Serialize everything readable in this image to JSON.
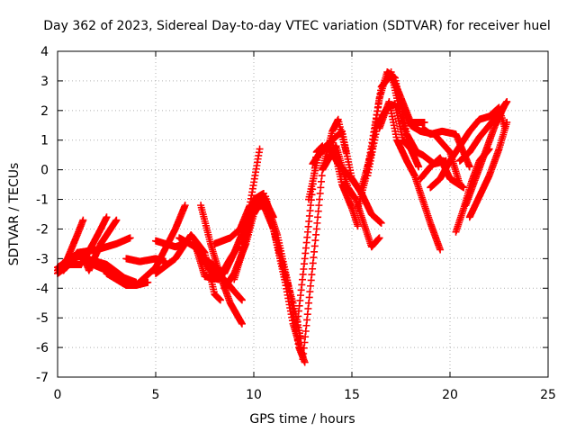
{
  "chart_data": {
    "type": "scatter",
    "title": "Day 362 of 2023, Sidereal Day-to-day VTEC variation (SDTVAR) for receiver huel",
    "xlabel": "GPS time / hours",
    "ylabel": "SDTVAR / TECUs",
    "xlim": [
      0,
      25
    ],
    "ylim": [
      -7,
      4
    ],
    "xticks": [
      "0",
      "5",
      "10",
      "15",
      "20",
      "25"
    ],
    "yticks": [
      "4",
      "3",
      "2",
      "1",
      "0",
      "-1",
      "-2",
      "-3",
      "-4",
      "-5",
      "-6",
      "-7"
    ],
    "grid": true,
    "marker": "+",
    "color": "#ff0000",
    "series": [
      {
        "x": [
          0.0,
          0.5,
          1.0,
          1.3
        ],
        "y": [
          -3.4,
          -3.0,
          -2.2,
          -1.7
        ]
      },
      {
        "x": [
          0.0,
          0.6,
          1.2,
          1.8,
          2.2,
          2.5
        ],
        "y": [
          -3.5,
          -3.2,
          -3.2,
          -2.5,
          -2.0,
          -1.6
        ]
      },
      {
        "x": [
          0.0,
          0.7,
          1.3,
          1.6,
          2.2,
          3.0
        ],
        "y": [
          -3.3,
          -3.0,
          -2.9,
          -3.4,
          -2.5,
          -1.7
        ]
      },
      {
        "x": [
          0.3,
          1.0,
          2.0,
          3.0,
          3.7
        ],
        "y": [
          -3.4,
          -2.8,
          -2.7,
          -2.5,
          -2.3
        ]
      },
      {
        "x": [
          1.5,
          2.5,
          3.5,
          4.0,
          4.6
        ],
        "y": [
          -3.0,
          -3.2,
          -3.7,
          -3.9,
          -3.8
        ]
      },
      {
        "x": [
          1.8,
          2.5,
          3.2,
          4.0
        ],
        "y": [
          -3.2,
          -3.4,
          -3.6,
          -3.8
        ]
      },
      {
        "x": [
          2.5,
          3.5,
          4.0,
          5.0,
          6.0,
          6.5
        ],
        "y": [
          -3.5,
          -3.9,
          -3.9,
          -3.3,
          -2.0,
          -1.2
        ]
      },
      {
        "x": [
          3.5,
          4.2,
          5.0,
          5.5
        ],
        "y": [
          -3.0,
          -3.1,
          -3.0,
          -3.1
        ]
      },
      {
        "x": [
          5.0,
          5.5,
          6.0,
          6.5
        ],
        "y": [
          -2.4,
          -2.5,
          -2.6,
          -2.5
        ]
      },
      {
        "x": [
          5.0,
          6.0,
          6.8,
          7.5,
          8.0,
          8.3
        ],
        "y": [
          -3.5,
          -3.0,
          -2.2,
          -2.8,
          -4.2,
          -4.4
        ]
      },
      {
        "x": [
          6.2,
          7.0,
          7.8,
          8.5,
          9.0,
          9.4
        ],
        "y": [
          -2.3,
          -2.6,
          -3.4,
          -3.7,
          -4.1,
          -4.4
        ]
      },
      {
        "x": [
          7.0,
          7.5,
          8.2,
          8.8,
          9.2
        ],
        "y": [
          -2.5,
          -3.6,
          -3.7,
          -3.0,
          -2.6
        ]
      },
      {
        "x": [
          7.3,
          7.8,
          8.3,
          8.8,
          9.4
        ],
        "y": [
          -1.2,
          -2.5,
          -3.6,
          -4.5,
          -5.2
        ]
      },
      {
        "x": [
          7.5,
          8.5,
          9.0,
          9.5,
          10.0,
          10.5
        ],
        "y": [
          -3.0,
          -3.5,
          -2.8,
          -2.0,
          -1.0,
          -0.8
        ]
      },
      {
        "x": [
          8.0,
          8.8,
          9.3,
          9.8,
          10.3
        ],
        "y": [
          -2.5,
          -2.3,
          -2.0,
          -1.2,
          0.7
        ]
      },
      {
        "x": [
          8.5,
          9.0,
          9.6,
          10.0,
          10.5,
          11.0
        ],
        "y": [
          -4.0,
          -3.5,
          -2.5,
          -1.5,
          -0.9,
          -1.6
        ]
      },
      {
        "x": [
          9.0,
          9.5,
          10.0,
          10.5,
          11.0,
          11.5,
          12.0,
          12.4
        ],
        "y": [
          -3.7,
          -2.6,
          -1.3,
          -1.2,
          -2.0,
          -3.3,
          -4.5,
          -5.7
        ]
      },
      {
        "x": [
          9.4,
          10.0,
          10.6,
          11.2,
          11.8,
          12.3,
          12.6
        ],
        "y": [
          -2.5,
          -1.2,
          -1.0,
          -2.2,
          -4.0,
          -6.0,
          -6.5
        ]
      },
      {
        "x": [
          10.0,
          10.6,
          11.0,
          11.6,
          12.0,
          12.5
        ],
        "y": [
          -1.0,
          -0.9,
          -2.0,
          -3.8,
          -5.2,
          -6.3
        ]
      },
      {
        "x": [
          12.2,
          12.6,
          12.9,
          13.2,
          13.5
        ],
        "y": [
          -5.3,
          -3.0,
          -1.2,
          0.6,
          0.8
        ]
      },
      {
        "x": [
          12.5,
          12.8,
          13.2,
          13.5,
          14.0,
          14.3,
          14.7
        ],
        "y": [
          -6.4,
          -4.5,
          -2.0,
          0.0,
          1.3,
          1.7,
          0.6
        ]
      },
      {
        "x": [
          12.8,
          13.3,
          13.8,
          14.3,
          15.0,
          15.5
        ],
        "y": [
          -1.0,
          0.5,
          0.8,
          0.2,
          -0.3,
          -0.8
        ]
      },
      {
        "x": [
          13.0,
          13.5,
          14.0,
          14.5,
          15.0,
          15.3
        ],
        "y": [
          0.2,
          0.7,
          1.0,
          -0.5,
          -1.3,
          -1.9
        ]
      },
      {
        "x": [
          13.5,
          14.2,
          14.8,
          15.2,
          15.6,
          16.0,
          16.4
        ],
        "y": [
          0.0,
          0.8,
          -0.6,
          -1.0,
          -1.8,
          -2.6,
          -2.3
        ]
      },
      {
        "x": [
          14.0,
          14.5,
          15.0,
          15.5,
          16.0,
          16.5
        ],
        "y": [
          1.0,
          1.3,
          -0.3,
          -0.8,
          -1.5,
          -1.8
        ]
      },
      {
        "x": [
          15.3,
          15.7,
          16.0,
          16.5,
          17.0,
          17.4,
          18.0,
          18.7
        ],
        "y": [
          -1.3,
          -0.3,
          0.8,
          2.8,
          3.2,
          2.6,
          1.6,
          1.6
        ]
      },
      {
        "x": [
          15.5,
          16.0,
          16.4,
          16.8,
          17.2,
          17.8,
          18.3
        ],
        "y": [
          -0.6,
          0.6,
          2.4,
          3.3,
          3.1,
          1.2,
          0.6
        ]
      },
      {
        "x": [
          15.8,
          16.3,
          16.8,
          17.2,
          17.6,
          18.0,
          18.4
        ],
        "y": [
          -0.2,
          1.5,
          2.1,
          2.2,
          1.0,
          0.7,
          0.1
        ]
      },
      {
        "x": [
          16.4,
          16.9,
          17.3,
          17.8,
          18.2,
          18.6,
          19.0,
          19.5
        ],
        "y": [
          1.4,
          2.3,
          1.0,
          0.3,
          -0.2,
          -1.0,
          -1.8,
          -2.7
        ]
      },
      {
        "x": [
          17.0,
          17.5,
          18.0,
          18.6,
          19.2,
          19.8
        ],
        "y": [
          3.3,
          1.8,
          0.7,
          0.5,
          0.2,
          0.3
        ]
      },
      {
        "x": [
          17.5,
          18.0,
          18.5,
          19.2,
          20.0,
          20.5
        ],
        "y": [
          2.3,
          1.5,
          1.3,
          1.2,
          0.6,
          -0.5
        ]
      },
      {
        "x": [
          18.6,
          19.0,
          19.6,
          20.3,
          21.0
        ],
        "y": [
          1.4,
          1.2,
          1.3,
          1.2,
          0.1
        ]
      },
      {
        "x": [
          18.5,
          19.0,
          19.5,
          20.0,
          20.7
        ],
        "y": [
          -0.3,
          0.1,
          0.4,
          -0.3,
          -0.6
        ]
      },
      {
        "x": [
          19.0,
          19.5,
          20.0,
          20.5,
          21.0,
          21.5,
          22.0,
          22.5,
          22.8
        ],
        "y": [
          -0.6,
          -0.3,
          0.3,
          0.8,
          1.3,
          1.7,
          1.8,
          2.1,
          1.4
        ]
      },
      {
        "x": [
          20.3,
          20.7,
          21.1,
          21.5,
          22.0
        ],
        "y": [
          -2.1,
          -1.3,
          -0.4,
          0.3,
          0.7
        ]
      },
      {
        "x": [
          20.8,
          21.3,
          21.8,
          22.3,
          22.8
        ],
        "y": [
          -1.2,
          -0.3,
          0.6,
          1.5,
          2.2
        ]
      },
      {
        "x": [
          21.0,
          21.5,
          22.0,
          22.5,
          22.9
        ],
        "y": [
          -1.6,
          -0.9,
          -0.2,
          0.7,
          1.6
        ]
      },
      {
        "x": [
          20.5,
          21.0,
          21.5,
          22.0,
          22.6,
          22.9
        ],
        "y": [
          0.3,
          0.6,
          1.1,
          1.5,
          2.0,
          2.3
        ]
      }
    ]
  }
}
